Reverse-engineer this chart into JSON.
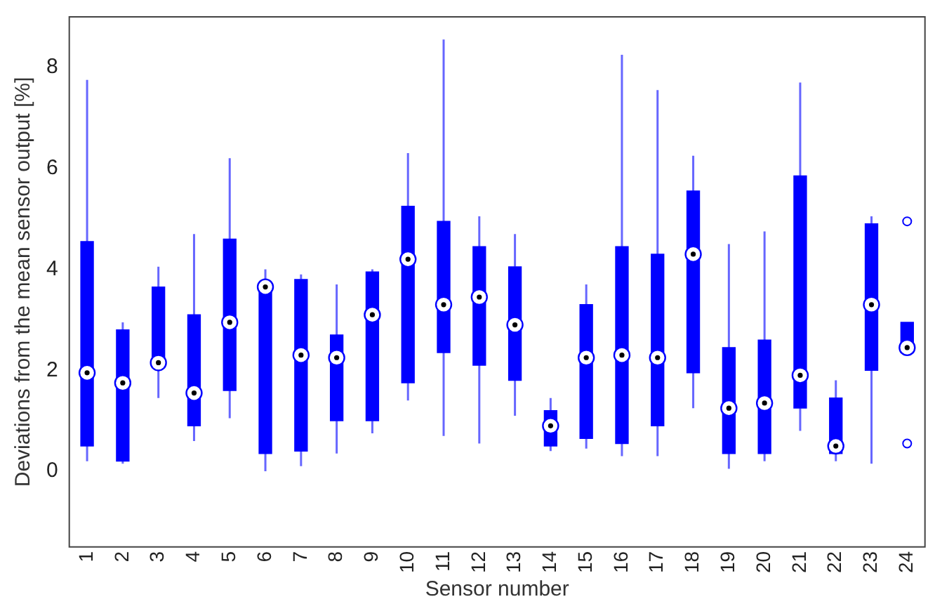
{
  "chart_data": {
    "type": "box",
    "xlabel": "Sensor number",
    "ylabel": "Deviations from the mean sensor output [%]",
    "categories": [
      "1",
      "2",
      "3",
      "4",
      "5",
      "6",
      "7",
      "8",
      "9",
      "10",
      "11",
      "12",
      "13",
      "14",
      "15",
      "16",
      "17",
      "18",
      "19",
      "20",
      "21",
      "22",
      "23",
      "24"
    ],
    "color": "#0000ff",
    "boxes": [
      {
        "low": 0.2,
        "q1": 0.5,
        "median": 1.95,
        "q3": 4.55,
        "high": 7.75
      },
      {
        "low": 0.15,
        "q1": 0.2,
        "median": 1.75,
        "q3": 2.8,
        "high": 2.95
      },
      {
        "low": 1.45,
        "q1": 2.05,
        "median": 2.15,
        "q3": 3.65,
        "high": 4.05
      },
      {
        "low": 0.6,
        "q1": 0.9,
        "median": 1.55,
        "q3": 3.1,
        "high": 4.7
      },
      {
        "low": 1.05,
        "q1": 1.6,
        "median": 2.95,
        "q3": 4.6,
        "high": 6.2
      },
      {
        "low": 0.0,
        "q1": 0.35,
        "median": 3.65,
        "q3": 3.7,
        "high": 4.0
      },
      {
        "low": 0.1,
        "q1": 0.4,
        "median": 2.3,
        "q3": 3.8,
        "high": 3.9
      },
      {
        "low": 0.35,
        "q1": 1.0,
        "median": 2.25,
        "q3": 2.7,
        "high": 3.7
      },
      {
        "low": 0.75,
        "q1": 1.0,
        "median": 3.1,
        "q3": 3.95,
        "high": 4.0
      },
      {
        "low": 1.4,
        "q1": 1.75,
        "median": 4.2,
        "q3": 5.25,
        "high": 6.3
      },
      {
        "low": 0.7,
        "q1": 2.35,
        "median": 3.3,
        "q3": 4.95,
        "high": 8.55
      },
      {
        "low": 0.55,
        "q1": 2.1,
        "median": 3.45,
        "q3": 4.45,
        "high": 5.05
      },
      {
        "low": 1.1,
        "q1": 1.8,
        "median": 2.9,
        "q3": 4.05,
        "high": 4.7
      },
      {
        "low": 0.4,
        "q1": 0.5,
        "median": 0.9,
        "q3": 1.2,
        "high": 1.45
      },
      {
        "low": 0.45,
        "q1": 0.65,
        "median": 2.25,
        "q3": 3.3,
        "high": 3.7
      },
      {
        "low": 0.3,
        "q1": 0.55,
        "median": 2.3,
        "q3": 4.45,
        "high": 8.25
      },
      {
        "low": 0.3,
        "q1": 0.9,
        "median": 2.25,
        "q3": 4.3,
        "high": 7.55
      },
      {
        "low": 1.25,
        "q1": 1.95,
        "median": 4.3,
        "q3": 5.55,
        "high": 6.25
      },
      {
        "low": 0.05,
        "q1": 0.35,
        "median": 1.25,
        "q3": 2.45,
        "high": 4.5
      },
      {
        "low": 0.2,
        "q1": 0.35,
        "median": 1.35,
        "q3": 2.6,
        "high": 4.75
      },
      {
        "low": 0.8,
        "q1": 1.25,
        "median": 1.9,
        "q3": 5.85,
        "high": 7.7
      },
      {
        "low": 0.2,
        "q1": 0.35,
        "median": 0.5,
        "q3": 1.45,
        "high": 1.8
      },
      {
        "low": 0.15,
        "q1": 2.0,
        "median": 3.3,
        "q3": 4.9,
        "high": 5.05
      },
      {
        "low": 2.35,
        "q1": 2.35,
        "median": 2.45,
        "q3": 2.95,
        "high": 2.95,
        "outliers": [
          4.95,
          0.55
        ]
      }
    ],
    "ylim": [
      -1.5,
      9
    ],
    "yticks": [
      0,
      2,
      4,
      6,
      8
    ],
    "grid": false
  }
}
